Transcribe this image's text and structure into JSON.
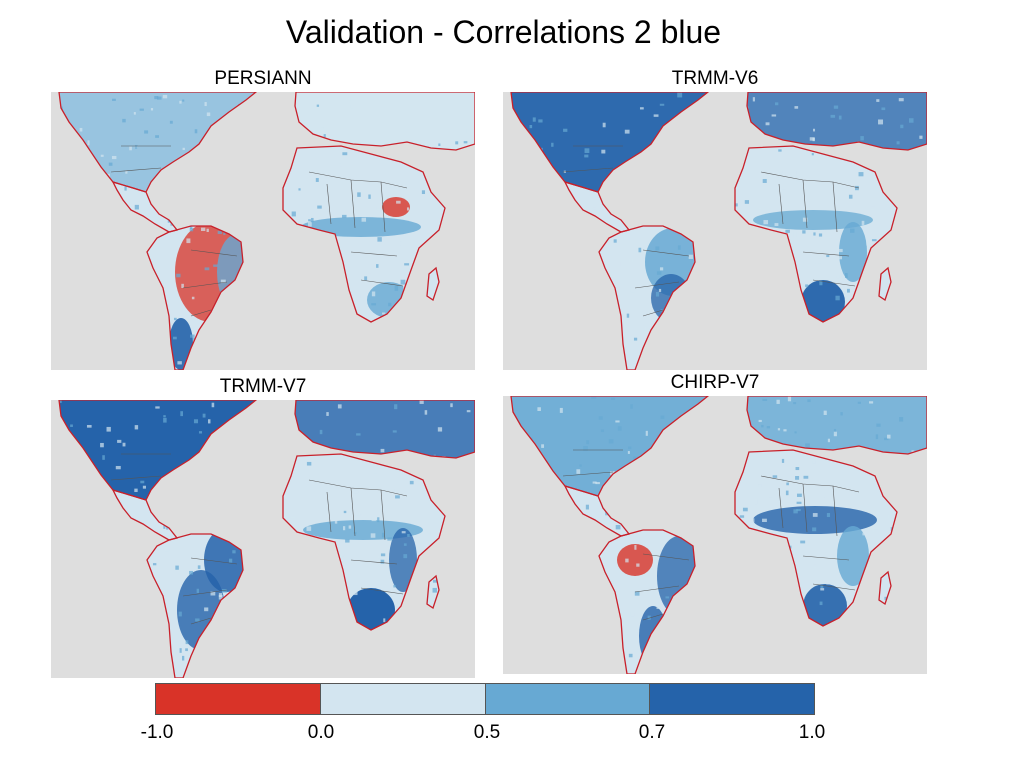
{
  "title": "Validation - Correlations 2 blue",
  "panels": [
    {
      "label": "PERSIANN",
      "theme": "mixed-red"
    },
    {
      "label": "TRMM-V6",
      "theme": "blue-north"
    },
    {
      "label": "TRMM-V7",
      "theme": "dark-north"
    },
    {
      "label": "CHIRP-V7",
      "theme": "mixed-blue"
    }
  ],
  "colorbar": {
    "colors": [
      "#d93328",
      "#d3e5f0",
      "#67a9d3",
      "#2563aa"
    ],
    "labels": [
      "-1.0",
      "0.0",
      "0.5",
      "0.7",
      "1.0"
    ]
  },
  "colors": {
    "ocean": "#dedede",
    "coast": "#c8202a",
    "borders": "#555555"
  }
}
